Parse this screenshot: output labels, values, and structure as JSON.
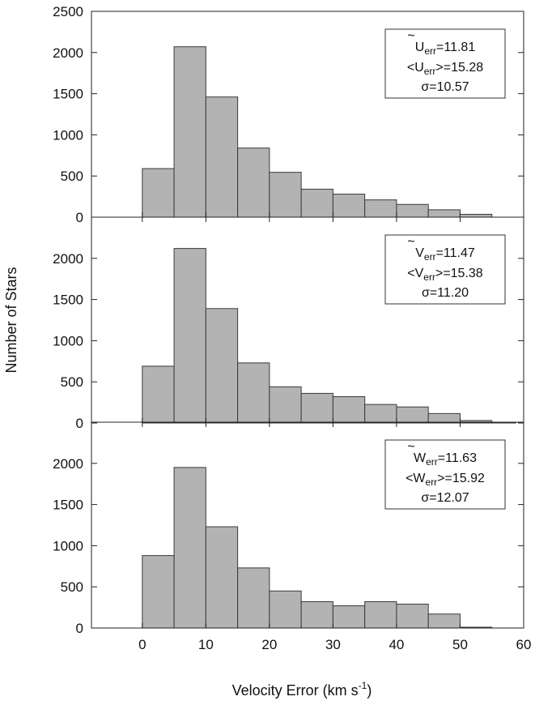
{
  "chart_data": {
    "type": "bar",
    "xlabel": "Velocity Error (km s",
    "xlabel_sup": "-1",
    "xlabel_end": ")",
    "ylabel": "Number of Stars",
    "xlim": [
      -8,
      60
    ],
    "x_ticks": [
      0,
      10,
      20,
      30,
      40,
      50,
      60
    ],
    "bin_edges": [
      0,
      5,
      10,
      15,
      20,
      25,
      30,
      35,
      40,
      45,
      50,
      55
    ],
    "panels": [
      {
        "ylim": [
          0,
          2500
        ],
        "y_ticks": [
          0,
          500,
          1000,
          1500,
          2000,
          2500
        ],
        "values": [
          590,
          2070,
          1460,
          840,
          545,
          340,
          280,
          210,
          155,
          90,
          35
        ],
        "stats": {
          "median_symbol": "U",
          "median_sub": "err",
          "median_value": "=11.81",
          "mean_open": "<U",
          "mean_sub": "err",
          "mean_value": ">=15.28",
          "sigma": "σ=10.57"
        }
      },
      {
        "ylim": [
          0,
          2500
        ],
        "y_ticks": [
          0,
          500,
          1000,
          1500,
          2000
        ],
        "values": [
          690,
          2120,
          1390,
          730,
          440,
          360,
          320,
          225,
          195,
          115,
          30
        ],
        "stats": {
          "median_symbol": "V",
          "median_sub": "err",
          "median_value": "=11.47",
          "mean_open": "<V",
          "mean_sub": "err",
          "mean_value": ">=15.38",
          "sigma": "σ=11.20"
        }
      },
      {
        "ylim": [
          0,
          2500
        ],
        "y_ticks": [
          0,
          500,
          1000,
          1500,
          2000
        ],
        "values": [
          880,
          1950,
          1230,
          730,
          450,
          320,
          270,
          320,
          290,
          170,
          10
        ],
        "stats": {
          "median_symbol": "W",
          "median_sub": "err",
          "median_value": "=11.63",
          "mean_open": "<W",
          "mean_sub": "err",
          "mean_value": ">=15.92",
          "sigma": "σ=12.07"
        }
      }
    ]
  }
}
